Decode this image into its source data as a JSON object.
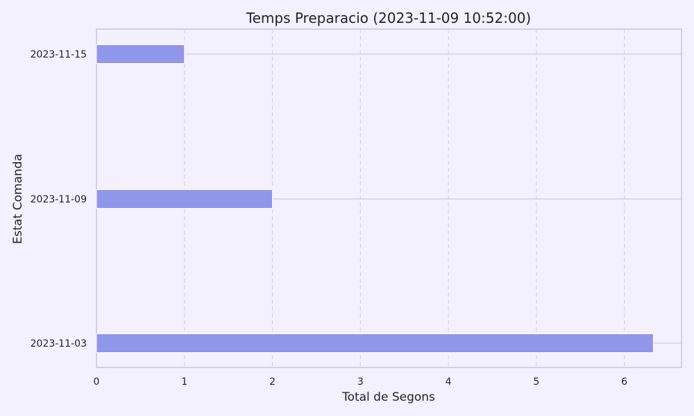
{
  "chart_data": {
    "type": "bar",
    "orientation": "horizontal",
    "title": "Temps Preparacio (2023-11-09 10:52:00)",
    "xlabel": "Total de Segons",
    "ylabel": "Estat Comanda",
    "categories": [
      "2023-11-03",
      "2023-11-09",
      "2023-11-15"
    ],
    "values": [
      6.33,
      2,
      1
    ],
    "xlim": [
      0,
      6.65
    ],
    "xticks": [
      "0",
      "1",
      "2",
      "3",
      "4",
      "5",
      "6"
    ],
    "grid": "x-dashed",
    "bar_color": "#9096ea"
  }
}
